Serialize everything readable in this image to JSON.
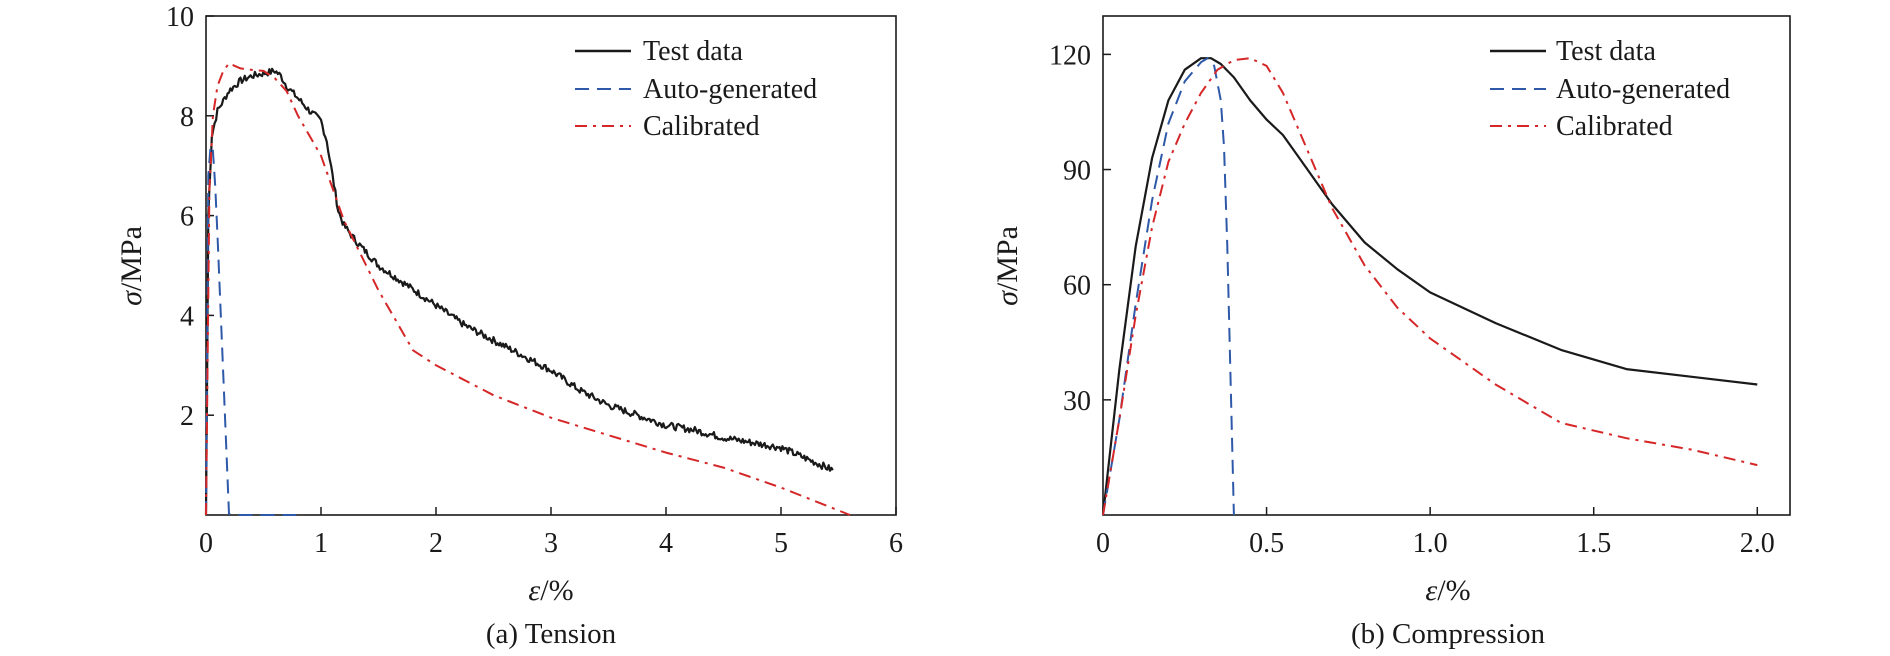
{
  "chart_data": [
    {
      "type": "line",
      "caption": "(a) Tension",
      "xlabel_symbol": "ε",
      "xlabel_unit": "/%",
      "ylabel_symbol": "σ",
      "ylabel_unit": "/MPa",
      "xlim": [
        0,
        6
      ],
      "ylim": [
        0,
        10
      ],
      "xticks": [
        0,
        1,
        2,
        3,
        4,
        5,
        6
      ],
      "xtick_labels": [
        "0",
        "1",
        "2",
        "3",
        "4",
        "5",
        "6"
      ],
      "yticks": [
        2,
        4,
        6,
        8,
        10
      ],
      "ytick_labels": [
        "2",
        "4",
        "6",
        "8",
        "10"
      ],
      "legend_position": "top-right",
      "series": [
        {
          "name": "Test data",
          "style": "solid",
          "color": "#1a1a1a",
          "noise": 0.07,
          "x": [
            0,
            0.02,
            0.05,
            0.1,
            0.15,
            0.2,
            0.3,
            0.4,
            0.5,
            0.6,
            0.65,
            0.7,
            0.8,
            0.9,
            1.0,
            1.05,
            1.1,
            1.15,
            1.2,
            1.3,
            1.5,
            1.75,
            2.0,
            2.25,
            2.5,
            2.75,
            3.0,
            3.25,
            3.5,
            3.75,
            4.0,
            4.25,
            4.5,
            4.75,
            5.0,
            5.25,
            5.45
          ],
          "y": [
            0,
            6.0,
            7.6,
            8.1,
            8.3,
            8.5,
            8.7,
            8.8,
            8.85,
            8.9,
            8.8,
            8.6,
            8.35,
            8.1,
            7.9,
            7.5,
            6.8,
            6.1,
            5.8,
            5.5,
            5.0,
            4.6,
            4.2,
            3.8,
            3.5,
            3.2,
            2.9,
            2.5,
            2.2,
            2.0,
            1.8,
            1.7,
            1.55,
            1.45,
            1.35,
            1.1,
            0.9
          ]
        },
        {
          "name": "Auto-generated",
          "style": "dashed",
          "color": "#2e59a8",
          "x": [
            0,
            0.02,
            0.04,
            0.06,
            0.08,
            0.1,
            0.15,
            0.2,
            0.3,
            0.8
          ],
          "y": [
            0,
            6.8,
            7.4,
            7.3,
            6.6,
            5.6,
            2.8,
            0.02,
            0,
            0
          ]
        },
        {
          "name": "Calibrated",
          "style": "dashdot",
          "color": "#d62728",
          "x": [
            0,
            0.03,
            0.06,
            0.1,
            0.15,
            0.2,
            0.25,
            0.3,
            0.4,
            0.5,
            0.6,
            0.7,
            0.8,
            1.0,
            1.2,
            1.5,
            1.8,
            2.0,
            2.5,
            3.0,
            3.5,
            4.0,
            4.5,
            5.0,
            5.6
          ],
          "y": [
            0,
            6.5,
            8.0,
            8.6,
            8.9,
            9.05,
            9.0,
            8.95,
            8.92,
            8.9,
            8.75,
            8.5,
            8.0,
            7.2,
            5.9,
            4.5,
            3.3,
            3.0,
            2.4,
            1.95,
            1.6,
            1.25,
            0.95,
            0.55,
            0.0
          ]
        }
      ]
    },
    {
      "type": "line",
      "caption": "(b) Compression",
      "xlabel_symbol": "ε",
      "xlabel_unit": "/%",
      "ylabel_symbol": "σ",
      "ylabel_unit": "/MPa",
      "xlim": [
        0,
        2.1
      ],
      "ylim": [
        0,
        130
      ],
      "xticks": [
        0,
        0.5,
        1.0,
        1.5,
        2.0
      ],
      "xtick_labels": [
        "0",
        "0.5",
        "1.0",
        "1.5",
        "2.0"
      ],
      "yticks": [
        30,
        60,
        90,
        120
      ],
      "ytick_labels": [
        "30",
        "60",
        "90",
        "120"
      ],
      "legend_position": "top-right",
      "series": [
        {
          "name": "Test data",
          "style": "solid",
          "color": "#1a1a1a",
          "x": [
            0,
            0.05,
            0.1,
            0.15,
            0.2,
            0.25,
            0.3,
            0.33,
            0.36,
            0.4,
            0.45,
            0.5,
            0.55,
            0.6,
            0.7,
            0.8,
            0.9,
            1.0,
            1.2,
            1.4,
            1.6,
            1.8,
            2.0
          ],
          "y": [
            0,
            38,
            70,
            93,
            108,
            116,
            119,
            119,
            117.5,
            114,
            108,
            103,
            99,
            93,
            81,
            71,
            64,
            58,
            50,
            43,
            38,
            36,
            34
          ]
        },
        {
          "name": "Auto-generated",
          "style": "dashed",
          "color": "#2e59a8",
          "x": [
            0,
            0.05,
            0.1,
            0.15,
            0.2,
            0.25,
            0.3,
            0.32,
            0.34,
            0.36,
            0.37,
            0.38,
            0.39,
            0.4
          ],
          "y": [
            0,
            25,
            55,
            82,
            102,
            113,
            118,
            119,
            117,
            108,
            96,
            70,
            35,
            0
          ]
        },
        {
          "name": "Calibrated",
          "style": "dashdot",
          "color": "#d62728",
          "x": [
            0,
            0.05,
            0.1,
            0.15,
            0.2,
            0.25,
            0.3,
            0.35,
            0.4,
            0.45,
            0.5,
            0.55,
            0.6,
            0.7,
            0.8,
            0.9,
            1.0,
            1.2,
            1.4,
            1.6,
            1.8,
            2.0
          ],
          "y": [
            0,
            25,
            52,
            75,
            92,
            102,
            110,
            116,
            118.5,
            119,
            117,
            110,
            100,
            80,
            65,
            54,
            46,
            34,
            24,
            20,
            17,
            13
          ]
        }
      ]
    }
  ]
}
